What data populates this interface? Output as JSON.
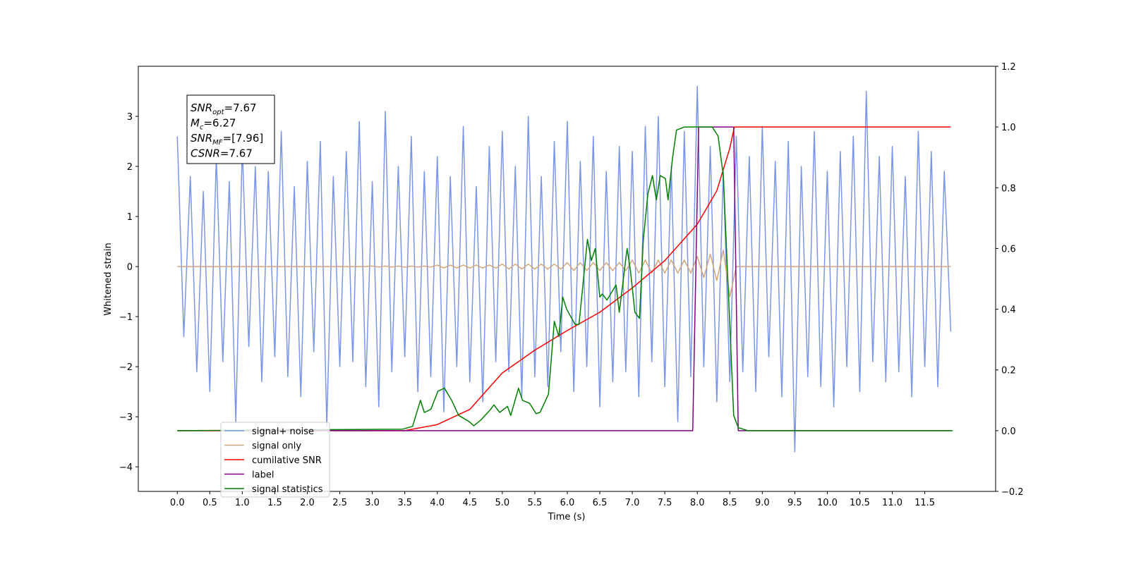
{
  "chart_data": {
    "type": "line",
    "xlabel": "Time (s)",
    "ylabel": "Whitened strain",
    "annotation": [
      {
        "base": "SNR",
        "sub": "opt",
        "text": "=7.67"
      },
      {
        "base": "M",
        "sub": "c",
        "text": "=6.27"
      },
      {
        "base": "SNR",
        "sub": "MF",
        "text": "=[7.96]"
      },
      {
        "base": "CSNR",
        "text": "=7.67"
      }
    ],
    "legend": "lower left",
    "xlim": [
      -0.6,
      12.59
    ],
    "xticks": [
      {
        "value": 0,
        "label": "0.0"
      },
      0.5,
      {
        "value": 1,
        "label": "1.0"
      },
      1.5,
      {
        "value": 2,
        "label": "2.0"
      },
      2.5,
      {
        "value": 3,
        "label": "3.0"
      },
      3.5,
      {
        "value": 4,
        "label": "4.0"
      },
      4.5,
      {
        "value": 5,
        "label": "5.0"
      },
      5.5,
      {
        "value": 6,
        "label": "6.0"
      },
      6.5,
      {
        "value": 7,
        "label": "7.0"
      },
      7.5,
      {
        "value": 8,
        "label": "8.0"
      },
      8.5,
      {
        "value": 9,
        "label": "9.0"
      },
      9.5,
      {
        "value": 10,
        "label": "10.0"
      },
      10.5,
      {
        "value": 11,
        "label": "11.0"
      },
      11.5
    ],
    "ylim": [
      -4.49,
      4.0
    ],
    "yticks": [
      {
        "value": -4,
        "label": "−4"
      },
      {
        "value": -3,
        "label": "−3"
      },
      {
        "value": -2,
        "label": "−2"
      },
      {
        "value": -1,
        "label": "−1"
      },
      0,
      1,
      2,
      3
    ],
    "y2lim": [
      -0.2,
      1.2
    ],
    "y2ticks": [
      {
        "value": -0.2,
        "label": "−0.2"
      },
      {
        "value": 0,
        "label": "0.0"
      },
      0.2,
      0.4,
      0.6,
      0.8,
      {
        "value": 1,
        "label": "1.0"
      },
      1.2
    ],
    "x": [
      0,
      0.1,
      0.2,
      0.3,
      0.4,
      0.5,
      0.6,
      0.7,
      0.8,
      0.9,
      1,
      1.1,
      1.2,
      1.3,
      1.4,
      1.5,
      1.6,
      1.7,
      1.8,
      1.9,
      2,
      2.1,
      2.2,
      2.3,
      2.4,
      2.5,
      2.6,
      2.7,
      2.8,
      2.9,
      3,
      3.1,
      3.2,
      3.3,
      3.4,
      3.5,
      3.6,
      3.7,
      3.8,
      3.9,
      4,
      4.1,
      4.2,
      4.3,
      4.4,
      4.5,
      4.6,
      4.7,
      4.8,
      4.9,
      5,
      5.1,
      5.2,
      5.3,
      5.4,
      5.5,
      5.6,
      5.7,
      5.8,
      5.9,
      6,
      6.1,
      6.2,
      6.3,
      6.4,
      6.5,
      6.6,
      6.7,
      6.8,
      6.9,
      7,
      7.1,
      7.2,
      7.3,
      7.4,
      7.5,
      7.6,
      7.7,
      7.8,
      7.9,
      8,
      8.1,
      8.2,
      8.3,
      8.4,
      8.5,
      8.6,
      8.7,
      8.8,
      8.9,
      9,
      9.1,
      9.2,
      9.3,
      9.4,
      9.5,
      9.6,
      9.7,
      9.8,
      9.9,
      10,
      10.1,
      10.2,
      10.3,
      10.4,
      10.5,
      10.6,
      10.7,
      10.8,
      10.9,
      11,
      11.1,
      11.2,
      11.3,
      11.4,
      11.5,
      11.6,
      11.7,
      11.8,
      11.9
    ],
    "series": [
      {
        "name": "signal+ noise",
        "color": "#7b96e8",
        "axis": "y",
        "values": [
          2.6,
          -1.4,
          1.8,
          -2.1,
          1.5,
          -2.5,
          2.2,
          -1.9,
          1.7,
          -3.1,
          2.4,
          -1.6,
          2.0,
          -2.3,
          1.9,
          -1.8,
          2.7,
          -2.2,
          1.6,
          -2.6,
          2.1,
          -1.7,
          2.5,
          -3.2,
          1.8,
          -2.0,
          2.3,
          -1.9,
          2.9,
          -2.4,
          1.7,
          -2.8,
          3.1,
          -2.1,
          2.0,
          -1.8,
          2.6,
          -2.5,
          1.9,
          -2.2,
          2.2,
          -2.9,
          1.8,
          -2.0,
          2.8,
          -2.3,
          1.6,
          -2.7,
          2.4,
          -1.9,
          2.7,
          -2.1,
          2.0,
          -2.6,
          3.0,
          -2.2,
          1.8,
          -2.4,
          2.5,
          -1.7,
          2.9,
          -2.5,
          2.1,
          -2.0,
          2.6,
          -2.8,
          1.9,
          -2.3,
          2.4,
          -2.1,
          2.3,
          -2.6,
          2.8,
          -1.9,
          3.0,
          -2.4,
          2.0,
          -3.1,
          2.7,
          -2.2,
          3.6,
          -2.0,
          2.4,
          -2.7,
          1.9,
          -2.3,
          2.6,
          -2.1,
          2.2,
          -2.5,
          2.8,
          -1.8,
          2.1,
          -2.6,
          2.5,
          -3.7,
          2.0,
          -2.2,
          2.7,
          -2.4,
          1.9,
          -2.8,
          2.3,
          -2.0,
          2.6,
          -2.5,
          3.5,
          -1.9,
          2.2,
          -2.3,
          2.4,
          -2.1,
          1.8,
          -2.6,
          2.7,
          -2.0,
          2.3,
          -2.4,
          1.9,
          -1.3
        ]
      },
      {
        "name": "signal only",
        "color": "#d2a679",
        "axis": "y",
        "values": [
          0,
          0,
          0,
          0,
          0,
          0,
          0,
          0,
          0,
          0,
          0,
          0,
          0,
          0,
          0,
          0,
          0,
          0,
          0,
          0,
          0,
          0,
          0,
          0,
          0,
          0,
          0,
          0,
          0,
          0,
          0.01,
          -0.01,
          0.01,
          -0.01,
          0.01,
          -0.01,
          0.01,
          -0.01,
          0.01,
          -0.01,
          0.03,
          -0.03,
          0.03,
          -0.03,
          0.03,
          -0.03,
          0.03,
          -0.03,
          0.03,
          -0.03,
          0.05,
          -0.05,
          0.05,
          -0.05,
          0.05,
          -0.05,
          0.05,
          -0.05,
          0.05,
          -0.05,
          0.08,
          -0.08,
          0.08,
          -0.08,
          0.08,
          -0.08,
          0.08,
          -0.08,
          0.08,
          -0.08,
          0.13,
          -0.13,
          0.13,
          -0.13,
          0.13,
          -0.13,
          0.13,
          -0.13,
          0.13,
          -0.13,
          0.2,
          -0.22,
          0.25,
          -0.28,
          0.33,
          -0.6,
          0,
          0,
          0,
          0,
          0,
          0,
          0,
          0,
          0,
          0,
          0,
          0,
          0,
          0,
          0,
          0,
          0,
          0,
          0,
          0,
          0,
          0,
          0,
          0,
          0,
          0,
          0,
          0,
          0,
          0,
          0,
          0,
          0,
          0
        ]
      },
      {
        "name": "cumilative SNR",
        "color": "#ff0000",
        "axis": "y2",
        "x": [
          0,
          3.5,
          4.0,
          4.5,
          5.0,
          5.5,
          6.0,
          6.5,
          7.0,
          7.5,
          8.0,
          8.3,
          8.5,
          8.57,
          11.9
        ],
        "values": [
          0,
          0,
          0.02,
          0.07,
          0.19,
          0.265,
          0.33,
          0.39,
          0.47,
          0.56,
          0.68,
          0.79,
          0.93,
          1.0,
          1.0
        ]
      },
      {
        "name": "label",
        "color": "#800080",
        "axis": "y2",
        "x": [
          0,
          7.93,
          8.02,
          8.56,
          8.63,
          11.9
        ],
        "values": [
          0,
          0,
          1,
          1,
          0,
          0
        ]
      },
      {
        "name": "signal statistics",
        "color": "#008000",
        "axis": "y2",
        "x": [
          0,
          3.47,
          3.62,
          3.74,
          3.8,
          3.9,
          4.01,
          4.11,
          4.22,
          4.33,
          4.49,
          4.56,
          4.67,
          4.82,
          4.87,
          4.96,
          5.08,
          5.13,
          5.25,
          5.31,
          5.42,
          5.52,
          5.58,
          5.71,
          5.8,
          5.87,
          5.93,
          5.99,
          6.12,
          6.18,
          6.31,
          6.37,
          6.43,
          6.5,
          6.54,
          6.61,
          6.75,
          6.8,
          6.92,
          6.97,
          7.04,
          7.11,
          7.17,
          7.24,
          7.31,
          7.37,
          7.43,
          7.51,
          7.55,
          7.62,
          7.68,
          7.8,
          8.02,
          8.23,
          8.32,
          8.4,
          8.51,
          8.56,
          8.63,
          8.78,
          11.93
        ],
        "values": [
          0,
          0.005,
          0.014,
          0.1,
          0.06,
          0.07,
          0.13,
          0.14,
          0.1,
          0.05,
          0.03,
          0.016,
          0.035,
          0.07,
          0.085,
          0.06,
          0.08,
          0.05,
          0.14,
          0.1,
          0.09,
          0.056,
          0.06,
          0.12,
          0.36,
          0.31,
          0.44,
          0.4,
          0.35,
          0.35,
          0.63,
          0.56,
          0.6,
          0.44,
          0.45,
          0.43,
          0.48,
          0.39,
          0.6,
          0.53,
          0.39,
          0.37,
          0.63,
          0.78,
          0.84,
          0.76,
          0.84,
          0.83,
          0.76,
          0.9,
          0.99,
          1.0,
          1.0,
          1.0,
          0.97,
          0.84,
          0.3,
          0.05,
          0.01,
          0,
          0
        ]
      }
    ]
  }
}
